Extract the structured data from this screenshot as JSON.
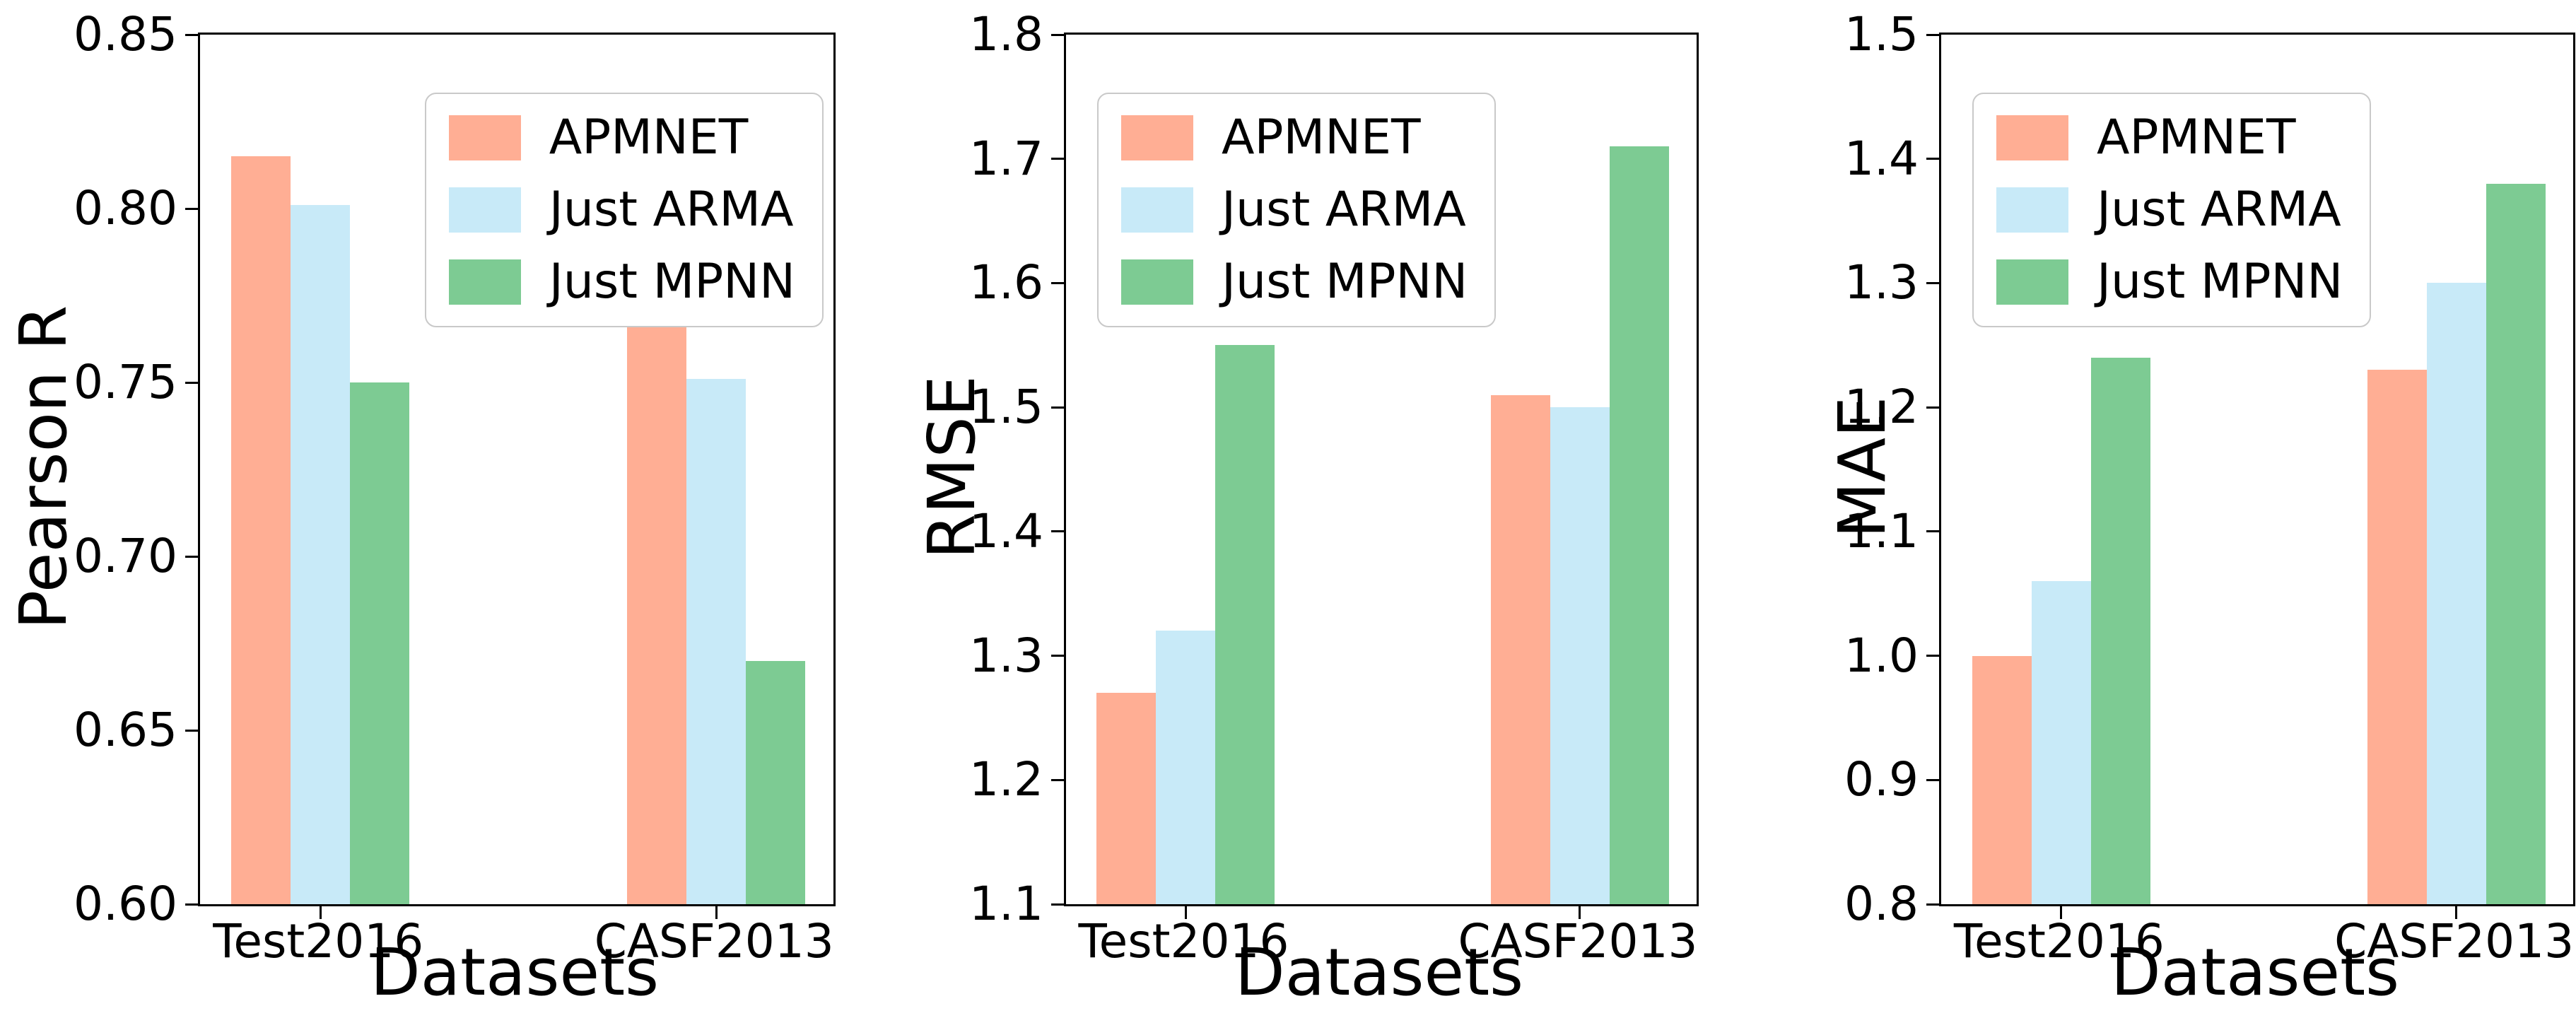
{
  "figure": {
    "background": "#ffffff",
    "axis_color": "#000000",
    "legend_border_color": "#c9c9c9",
    "xlabel": "Datasets"
  },
  "chart_data": [
    {
      "type": "bar",
      "title": "",
      "ylabel": "Pearson R",
      "xlabel": "Datasets",
      "categories": [
        "Test2016",
        "CASF2013"
      ],
      "series": [
        {
          "name": "APMNET",
          "color": "#FFAE94",
          "values": [
            0.815,
            0.766
          ]
        },
        {
          "name": "Just ARMA",
          "color": "#C8EAF8",
          "values": [
            0.801,
            0.751
          ]
        },
        {
          "name": "Just MPNN",
          "color": "#7DCB93",
          "values": [
            0.75,
            0.67
          ]
        }
      ],
      "ylim": [
        0.6,
        0.85
      ],
      "yticks": [
        "0.60",
        "0.65",
        "0.70",
        "0.75",
        "0.80",
        "0.85"
      ],
      "legend_loc": "upper right",
      "grid": false
    },
    {
      "type": "bar",
      "title": "",
      "ylabel": "RMSE",
      "xlabel": "Datasets",
      "categories": [
        "Test2016",
        "CASF2013"
      ],
      "series": [
        {
          "name": "APMNET",
          "color": "#FFAE94",
          "values": [
            1.27,
            1.51
          ]
        },
        {
          "name": "Just ARMA",
          "color": "#C8EAF8",
          "values": [
            1.32,
            1.5
          ]
        },
        {
          "name": "Just MPNN",
          "color": "#7DCB93",
          "values": [
            1.55,
            1.71
          ]
        }
      ],
      "ylim": [
        1.1,
        1.8
      ],
      "yticks": [
        "1.1",
        "1.2",
        "1.3",
        "1.4",
        "1.5",
        "1.6",
        "1.7",
        "1.8"
      ],
      "legend_loc": "upper left",
      "grid": false
    },
    {
      "type": "bar",
      "title": "",
      "ylabel": "MAE",
      "xlabel": "Datasets",
      "categories": [
        "Test2016",
        "CASF2013"
      ],
      "series": [
        {
          "name": "APMNET",
          "color": "#FFAE94",
          "values": [
            1.0,
            1.23
          ]
        },
        {
          "name": "Just ARMA",
          "color": "#C8EAF8",
          "values": [
            1.06,
            1.3
          ]
        },
        {
          "name": "Just MPNN",
          "color": "#7DCB93",
          "values": [
            1.24,
            1.38
          ]
        }
      ],
      "ylim": [
        0.8,
        1.5
      ],
      "yticks": [
        "0.8",
        "0.9",
        "1.0",
        "1.1",
        "1.2",
        "1.3",
        "1.4",
        "1.5"
      ],
      "legend_loc": "upper left",
      "grid": false
    }
  ]
}
